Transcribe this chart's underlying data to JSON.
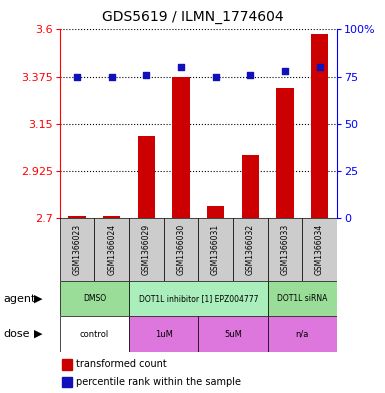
{
  "title": "GDS5619 / ILMN_1774604",
  "samples": [
    "GSM1366023",
    "GSM1366024",
    "GSM1366029",
    "GSM1366030",
    "GSM1366031",
    "GSM1366032",
    "GSM1366033",
    "GSM1366034"
  ],
  "bar_values": [
    2.708,
    2.712,
    3.09,
    3.375,
    2.76,
    3.0,
    3.32,
    3.58
  ],
  "dot_pct": [
    75,
    75,
    76,
    80,
    75,
    76,
    78,
    80
  ],
  "y_min": 2.7,
  "y_max": 3.6,
  "y_ticks": [
    2.7,
    2.925,
    3.15,
    3.375,
    3.6
  ],
  "y2_ticks": [
    0,
    25,
    50,
    75,
    100
  ],
  "y2_labels": [
    "0",
    "25",
    "50",
    "75",
    "100%"
  ],
  "bar_color": "#cc0000",
  "dot_color": "#1111bb",
  "sample_box_color": "#cccccc",
  "agent_groups": [
    {
      "label": "DMSO",
      "start": 0,
      "end": 2,
      "color": "#99dd99"
    },
    {
      "label": "DOT1L inhibitor [1] EPZ004777",
      "start": 2,
      "end": 6,
      "color": "#aaeebb"
    },
    {
      "label": "DOT1L siRNA",
      "start": 6,
      "end": 8,
      "color": "#99dd99"
    }
  ],
  "dose_groups": [
    {
      "label": "control",
      "start": 0,
      "end": 2,
      "color": "#ffffff"
    },
    {
      "label": "1uM",
      "start": 2,
      "end": 4,
      "color": "#dd77dd"
    },
    {
      "label": "5uM",
      "start": 4,
      "end": 6,
      "color": "#dd77dd"
    },
    {
      "label": "n/a",
      "start": 6,
      "end": 8,
      "color": "#dd77dd"
    }
  ],
  "agent_label": "agent",
  "dose_label": "dose",
  "legend_bar": "transformed count",
  "legend_dot": "percentile rank within the sample",
  "fig_w": 3.85,
  "fig_h": 3.93,
  "dpi": 100
}
